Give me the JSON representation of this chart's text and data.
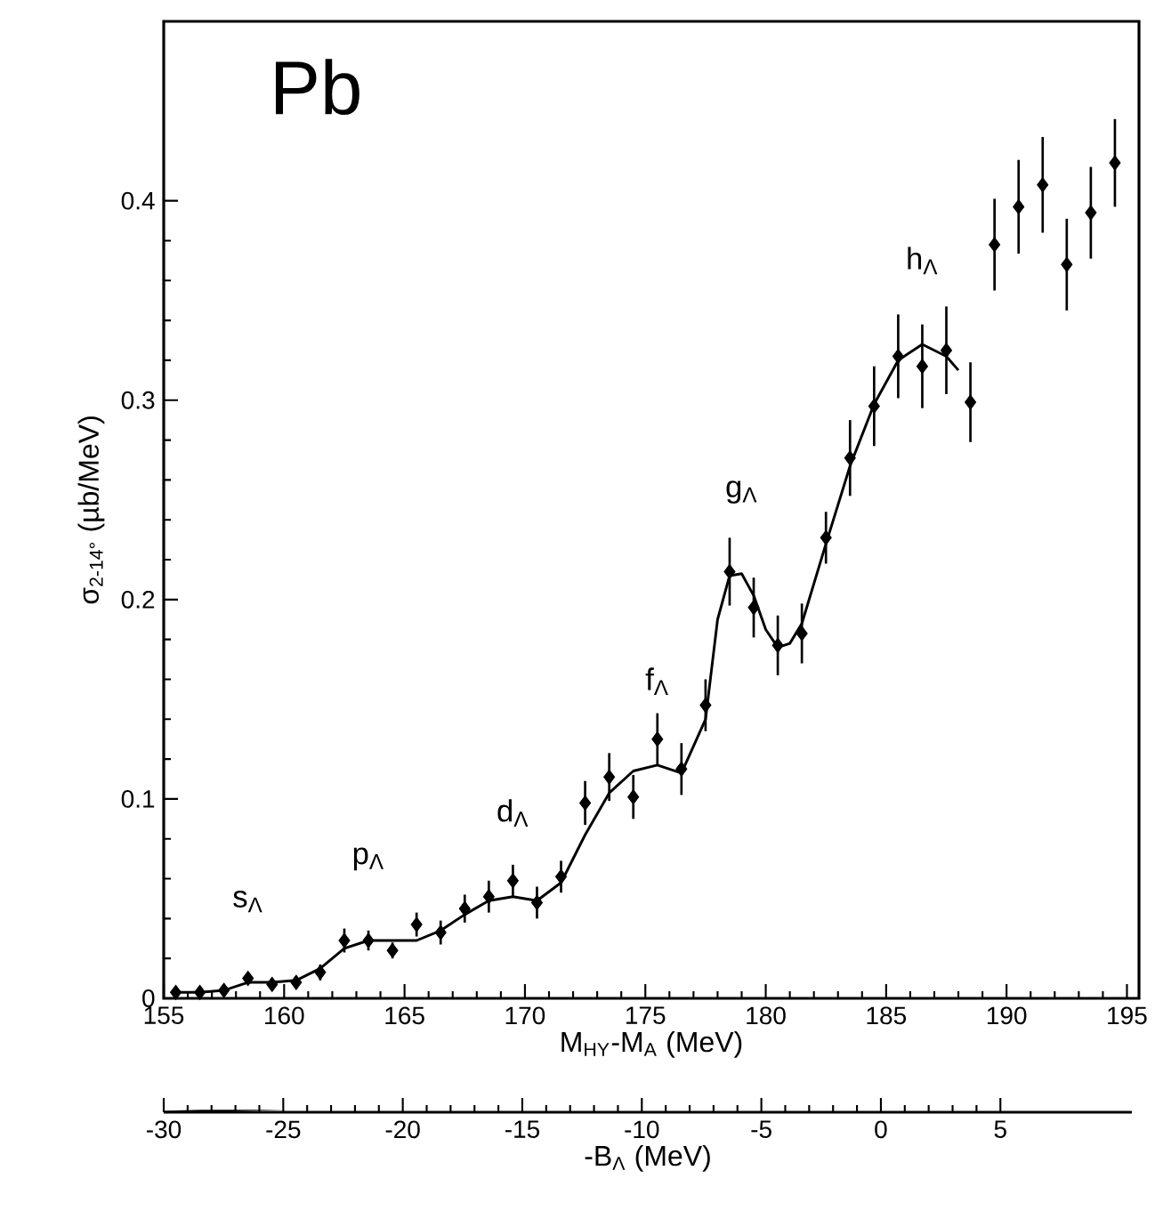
{
  "chart_data": {
    "type": "scatter",
    "xlabel": "M$_{HY}$-M$_{A}$  (MeV)",
    "ylabel": "σ$_{2-14°}$  (µb/MeV)",
    "x2label": "-B$_{Λ}$  (MeV)",
    "xlim": [
      155,
      195.5
    ],
    "xticks": [
      155,
      160,
      165,
      170,
      175,
      180,
      185,
      190,
      195
    ],
    "ylim": [
      0,
      0.49
    ],
    "yticks": [
      0,
      0.1,
      0.2,
      0.3,
      0.4
    ],
    "x2lim": [
      -30,
      10.5
    ],
    "x2ticks": [
      -30,
      -25,
      -20,
      -15,
      -10,
      -5,
      0,
      5
    ],
    "grid": false,
    "annotations": [
      "Pb",
      {
        "text": "s$_{Λ}$",
        "x": 158.5,
        "y": 0.008
      },
      {
        "text": "p$_{Λ}$",
        "x": 163.5,
        "y": 0.029
      },
      {
        "text": "d$_{Λ}$",
        "x": 169.5,
        "y": 0.051
      },
      {
        "text": "f$_{Λ}$",
        "x": 175.5,
        "y": 0.117
      },
      {
        "text": "g$_{Λ}$",
        "x": 179.0,
        "y": 0.213
      },
      {
        "text": "h$_{Λ}$",
        "x": 186.5,
        "y": 0.328
      }
    ],
    "series": [
      {
        "type": "scatter",
        "marker": "diamond",
        "color": "#000000",
        "x": [
          155.5,
          156.5,
          157.5,
          158.5,
          159.5,
          160.5,
          161.5,
          162.5,
          163.5,
          164.5,
          165.5,
          166.5,
          167.5,
          168.5,
          169.5,
          170.5,
          171.5,
          172.5,
          173.5,
          174.5,
          175.5,
          176.5,
          177.5,
          178.5,
          179.5,
          180.5,
          181.5,
          182.5,
          183.5,
          184.5,
          185.5,
          186.5,
          187.5,
          188.5,
          189.5,
          190.5,
          191.5,
          192.5,
          193.5,
          194.5
        ],
        "values": [
          0.003,
          0.003,
          0.004,
          0.01,
          0.007,
          0.008,
          0.013,
          0.029,
          0.029,
          0.024,
          0.037,
          0.033,
          0.045,
          0.051,
          0.059,
          0.048,
          0.061,
          0.098,
          0.111,
          0.101,
          0.13,
          0.115,
          0.147,
          0.214,
          0.196,
          0.177,
          0.183,
          0.231,
          0.271,
          0.297,
          0.322,
          0.317,
          0.325,
          0.299,
          0.378,
          0.397,
          0.408,
          0.368,
          0.394,
          0.419
        ],
        "errors": [
          0.002,
          0.002,
          0.002,
          0.003,
          0.003,
          0.003,
          0.004,
          0.006,
          0.005,
          0.004,
          0.006,
          0.006,
          0.007,
          0.008,
          0.008,
          0.008,
          0.008,
          0.011,
          0.012,
          0.011,
          0.013,
          0.013,
          0.013,
          0.017,
          0.015,
          0.015,
          0.015,
          0.013,
          0.019,
          0.02,
          0.021,
          0.021,
          0.022,
          0.02,
          0.023,
          0.0235,
          0.024,
          0.023,
          0.023,
          0.022
        ]
      },
      {
        "type": "line",
        "color": "#000000",
        "x": [
          155.5,
          156.5,
          157.5,
          158.5,
          159.5,
          160.5,
          161.5,
          162.5,
          163.5,
          164.5,
          165.5,
          166.5,
          167.5,
          168.5,
          169.5,
          170.5,
          171.5,
          172.5,
          173.5,
          174.5,
          175.5,
          176.5,
          177.5,
          178.0,
          178.5,
          179.0,
          179.5,
          180.0,
          180.5,
          181.0,
          181.5,
          182.5,
          183.5,
          184.5,
          185.5,
          186.5,
          187.5,
          188.0
        ],
        "values": [
          0.003,
          0.003,
          0.004,
          0.008,
          0.008,
          0.009,
          0.015,
          0.025,
          0.029,
          0.029,
          0.029,
          0.034,
          0.042,
          0.049,
          0.051,
          0.049,
          0.058,
          0.082,
          0.103,
          0.114,
          0.117,
          0.113,
          0.14,
          0.19,
          0.212,
          0.213,
          0.202,
          0.185,
          0.176,
          0.178,
          0.188,
          0.228,
          0.267,
          0.298,
          0.32,
          0.328,
          0.322,
          0.315
        ]
      }
    ]
  }
}
